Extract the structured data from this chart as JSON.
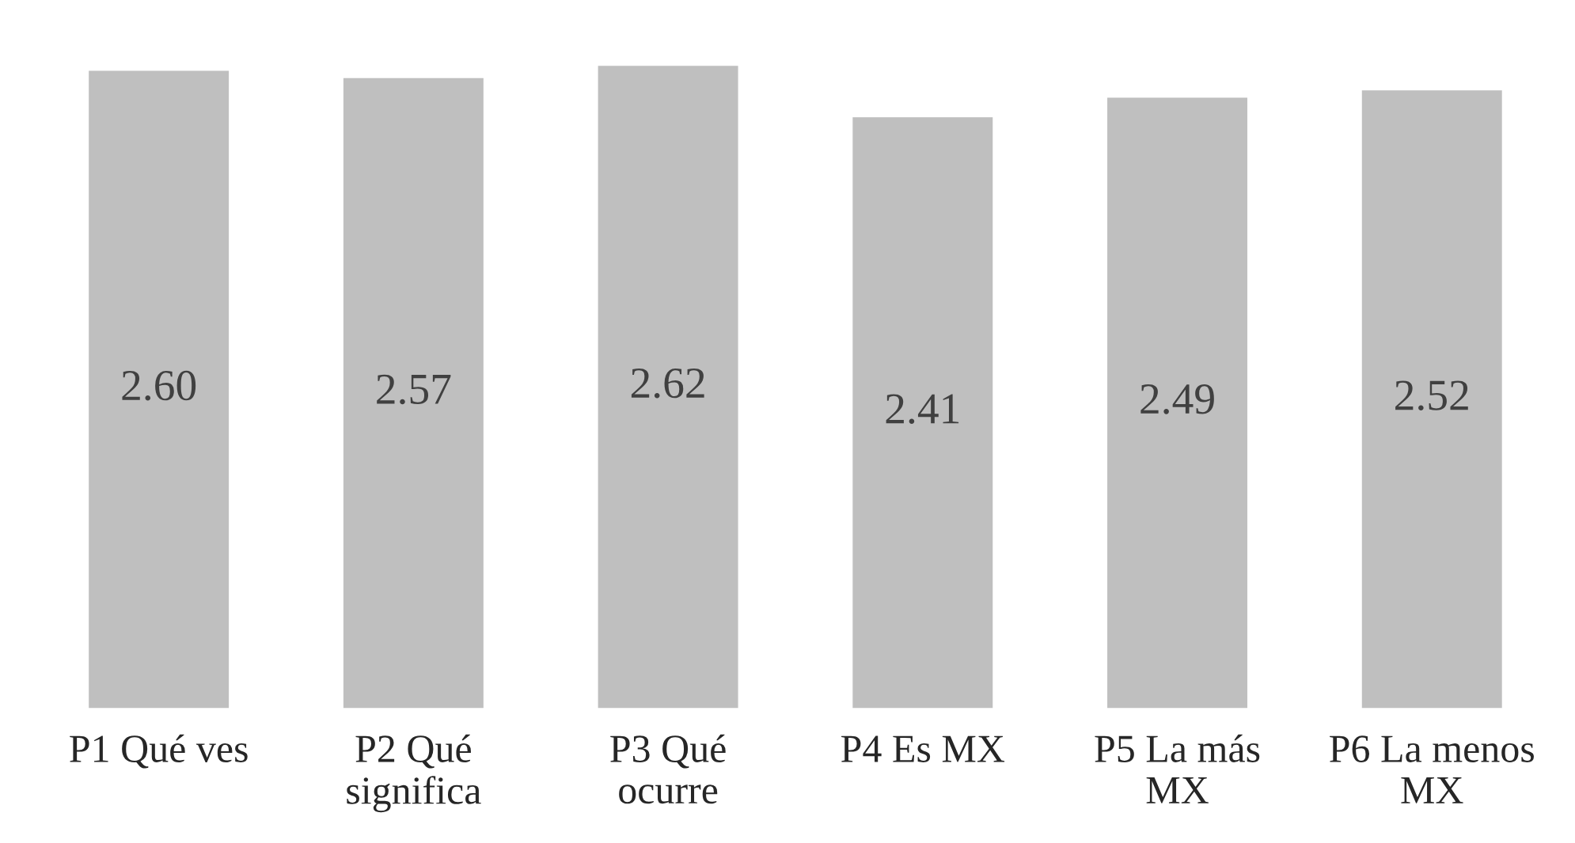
{
  "chart_data": {
    "type": "bar",
    "categories": [
      "P1 Qué ves",
      "P2 Qué significa",
      "P3 Qué ocurre",
      "P4 Es MX",
      "P5 La más MX",
      "P6 La menos MX"
    ],
    "values": [
      2.6,
      2.57,
      2.62,
      2.41,
      2.49,
      2.52
    ],
    "value_labels": [
      "2.60",
      "2.57",
      "2.62",
      "2.41",
      "2.49",
      "2.52"
    ],
    "color": "#bfbfbf",
    "grid": false,
    "legend": false
  }
}
